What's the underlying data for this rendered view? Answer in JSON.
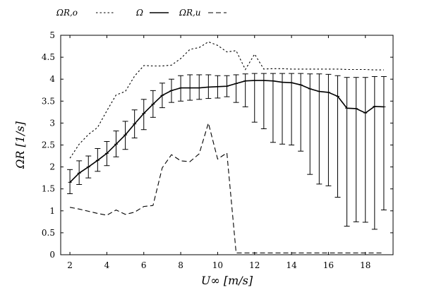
{
  "chart_data": {
    "type": "line",
    "title": "",
    "xlabel": "U∞ [m/s]",
    "ylabel": "ΩR [1/s]",
    "xlim": [
      1.5,
      19.5
    ],
    "ylim": [
      0,
      5
    ],
    "xticks": [
      "2",
      "4",
      "6",
      "8",
      "10",
      "12",
      "14",
      "16",
      "18"
    ],
    "yticks": [
      "0",
      "0.5",
      "1",
      "1.5",
      "2",
      "2.5",
      "3",
      "3.5",
      "4",
      "4.5",
      "5"
    ],
    "grid": false,
    "legend_position": "top",
    "x": [
      2.0,
      2.5,
      3.0,
      3.5,
      4.0,
      4.5,
      5.0,
      5.5,
      6.0,
      6.5,
      7.0,
      7.5,
      8.0,
      8.5,
      9.0,
      9.5,
      10.0,
      10.5,
      11.0,
      11.5,
      12.0,
      12.5,
      13.0,
      13.5,
      14.0,
      14.5,
      15.0,
      15.5,
      16.0,
      16.5,
      17.0,
      17.5,
      18.0,
      18.5,
      19.0
    ],
    "series": [
      {
        "name": "ΩR,o",
        "style": "dotted",
        "values": [
          2.2,
          2.52,
          2.74,
          2.9,
          3.28,
          3.64,
          3.72,
          4.07,
          4.31,
          4.3,
          4.3,
          4.32,
          4.47,
          4.68,
          4.72,
          4.85,
          4.77,
          4.62,
          4.65,
          4.22,
          4.57,
          4.23,
          4.24,
          4.24,
          4.23,
          4.23,
          4.23,
          4.23,
          4.23,
          4.23,
          4.22,
          4.22,
          4.22,
          4.21,
          4.21
        ]
      },
      {
        "name": "Ω",
        "style": "solid",
        "values": [
          1.65,
          1.86,
          2.0,
          2.15,
          2.31,
          2.52,
          2.73,
          2.98,
          3.22,
          3.43,
          3.63,
          3.74,
          3.8,
          3.8,
          3.8,
          3.82,
          3.83,
          3.84,
          3.9,
          3.96,
          3.97,
          3.97,
          3.96,
          3.93,
          3.92,
          3.87,
          3.78,
          3.72,
          3.7,
          3.61,
          3.34,
          3.33,
          3.23,
          3.38,
          3.37
        ],
        "error_low": [
          1.39,
          1.6,
          1.75,
          1.9,
          2.03,
          2.23,
          2.4,
          2.66,
          2.85,
          3.13,
          3.35,
          3.47,
          3.5,
          3.52,
          3.54,
          3.56,
          3.57,
          3.6,
          3.47,
          3.37,
          3.02,
          2.87,
          2.56,
          2.52,
          2.5,
          2.36,
          1.83,
          1.61,
          1.57,
          1.31,
          0.65,
          0.75,
          0.74,
          0.58,
          1.02
        ],
        "error_high": [
          1.94,
          2.14,
          2.25,
          2.42,
          2.58,
          2.82,
          3.04,
          3.3,
          3.54,
          3.74,
          3.91,
          4.0,
          4.08,
          4.1,
          4.1,
          4.1,
          4.08,
          4.08,
          4.1,
          4.12,
          4.13,
          4.13,
          4.13,
          4.13,
          4.13,
          4.13,
          4.12,
          4.12,
          4.11,
          4.08,
          4.04,
          4.04,
          4.04,
          4.06,
          4.06
        ]
      },
      {
        "name": "ΩR,u",
        "style": "dashed",
        "values": [
          1.08,
          1.04,
          0.99,
          0.94,
          0.9,
          1.02,
          0.92,
          0.97,
          1.1,
          1.12,
          1.98,
          2.28,
          2.14,
          2.12,
          2.3,
          3.0,
          2.18,
          2.32,
          0.04,
          0.04,
          0.04,
          0.04,
          0.04,
          0.04,
          0.04,
          0.04,
          0.04,
          0.04,
          0.04,
          0.04,
          0.04,
          0.04,
          0.04,
          0.04,
          0.04
        ]
      }
    ]
  }
}
